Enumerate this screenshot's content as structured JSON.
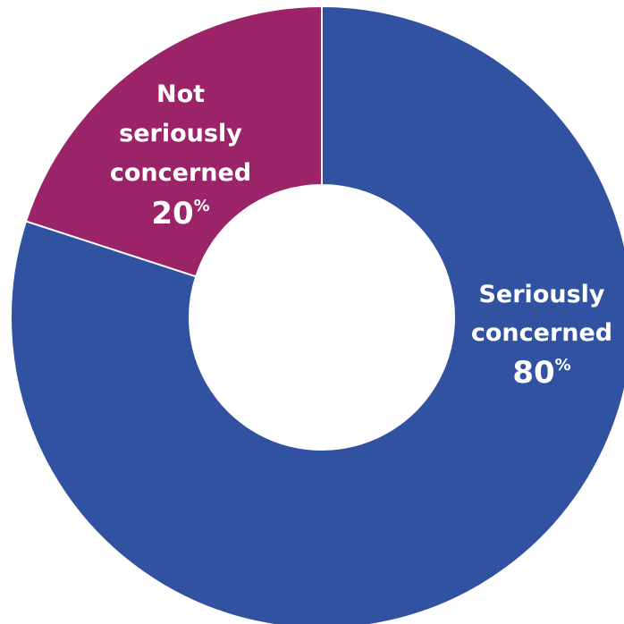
{
  "chart_data": {
    "type": "pie",
    "variant": "donut",
    "slices": [
      {
        "label_lines": [
          "Seriously",
          "concerned"
        ],
        "value": 80,
        "value_label": "80",
        "unit": "%",
        "color": "#3052a0"
      },
      {
        "label_lines": [
          "Not",
          "seriously",
          "concerned"
        ],
        "value": 20,
        "value_label": "20",
        "unit": "%",
        "color": "#9b2368"
      }
    ]
  }
}
